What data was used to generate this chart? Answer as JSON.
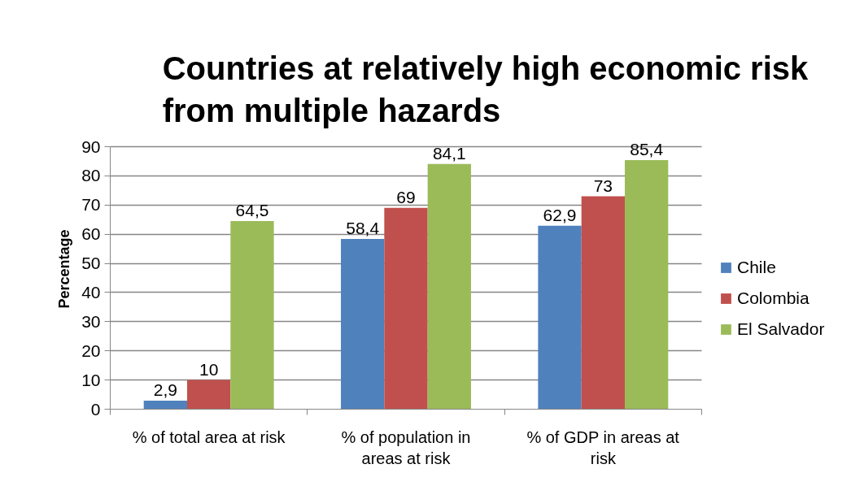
{
  "chart_data": {
    "type": "bar",
    "title": "Countries at relatively high economic risk from multiple hazards",
    "ylabel": "Percentage",
    "categories": [
      "% of total area at risk",
      "% of population in areas at risk",
      "% of GDP in areas at risk"
    ],
    "series": [
      {
        "name": "Chile",
        "color": "#4f81bd",
        "values": [
          2.9,
          58.4,
          62.9
        ],
        "value_labels": [
          "2,9",
          "58,4",
          "62,9"
        ]
      },
      {
        "name": "Colombia",
        "color": "#c0504d",
        "values": [
          10,
          69,
          73
        ],
        "value_labels": [
          "10",
          "69",
          "73"
        ]
      },
      {
        "name": "El Salvador",
        "color": "#9bbb59",
        "values": [
          64.5,
          84.1,
          85.4
        ],
        "value_labels": [
          "64,5",
          "84,1",
          "85,4"
        ]
      }
    ],
    "ylim": [
      0,
      90
    ],
    "yticks": [
      0,
      10,
      20,
      30,
      40,
      50,
      60,
      70,
      80,
      90
    ],
    "grid": "y",
    "legend": "right"
  }
}
